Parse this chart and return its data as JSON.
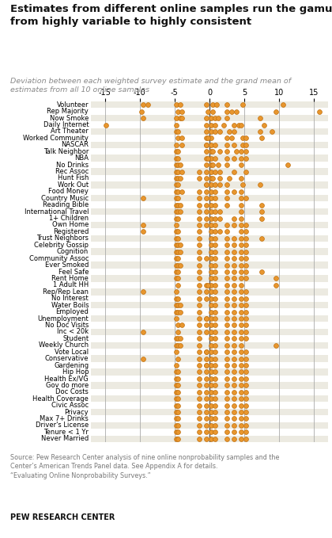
{
  "title": "Estimates from different online samples run the gamut\nfrom highly variable to highly consistent",
  "subtitle": "Deviation between each weighted survey estimate and the grand mean of\nestimates from all 10 online samples",
  "footer": "Source: Pew Research Center analysis of nine online nonprobability samples and the\nCenter’s American Trends Panel data. See Appendix A for details.\n“Evaluating Online Nonprobability Surveys.”",
  "footer2": "PEW RESEARCH CENTER",
  "xlim": [
    -17,
    17
  ],
  "xticks": [
    -15,
    -10,
    -5,
    0,
    5,
    10,
    15
  ],
  "categories": [
    "Volunteer",
    "Rep Majority",
    "Now Smoke",
    "Daily Internet",
    "Art Theater",
    "Worked Community",
    "NASCAR",
    "Talk Neighbor",
    "NBA",
    "No Drinks",
    "Rec Assoc",
    "Hunt Fish",
    "Work Out",
    "Food Money",
    "Country Music",
    "Reading Bible",
    "International Travel",
    "1+ Children",
    "Own Home",
    "Registered",
    "Trust Neighbors",
    "Celebrity Gossip",
    "Cognition",
    "Community Assoc",
    "Ever Smoked",
    "Feel Safe",
    "Rent Home",
    "1 Adult HH",
    "Rep/Rep Lean",
    "No Interest",
    "Water Boils",
    "Employed",
    "Unemployment",
    "No Doc Visits",
    "Inc < 20k",
    "Student",
    "Weekly Church",
    "Vote Local",
    "Conservative",
    "Gardening",
    "Hip Hop",
    "Health Ex/VG",
    "Gov do more",
    "Doc Costs",
    "Health Coverage",
    "Civic Assoc",
    "Privacy",
    "Max 7+ Drinks",
    "Driver's License",
    "Tenure < 1 Yr",
    "Never Married"
  ],
  "dot_positions": {
    "Volunteer": [
      -9.5,
      -8.8,
      -4.8,
      -4.2,
      -0.5,
      0.5,
      1.0,
      2.5,
      4.8,
      10.5
    ],
    "Rep Majority": [
      -9.8,
      -4.5,
      -4.0,
      -0.2,
      0.5,
      2.5,
      3.8,
      9.5,
      15.8,
      3.2
    ],
    "Now Smoke": [
      -9.5,
      -4.8,
      -4.2,
      -4.0,
      -0.5,
      0.2,
      0.8,
      1.2,
      7.2,
      2.5
    ],
    "Daily Internet": [
      -14.8,
      -4.8,
      -0.5,
      0.2,
      0.8,
      3.5,
      4.2,
      4.5,
      7.8,
      2.0
    ],
    "Art Theater": [
      -4.8,
      -4.5,
      -0.5,
      0.2,
      0.8,
      1.5,
      2.8,
      7.2,
      9.0,
      3.5
    ],
    "Worked Community": [
      -4.5,
      -4.0,
      -0.5,
      0.2,
      2.5,
      4.8,
      5.2,
      7.5,
      3.2,
      -0.2
    ],
    "NASCAR": [
      -4.8,
      -4.0,
      -0.5,
      0.2,
      0.8,
      2.5,
      3.5,
      4.8,
      5.2,
      -0.5
    ],
    "Talk Neighbor": [
      -4.8,
      -4.5,
      -0.5,
      0.2,
      0.5,
      1.5,
      2.5,
      3.8,
      4.5,
      5.2
    ],
    "NBA": [
      -4.8,
      -4.5,
      -0.5,
      0.2,
      0.8,
      2.5,
      3.5,
      4.5,
      5.2,
      -0.2
    ],
    "No Drinks": [
      -4.8,
      -4.5,
      -4.2,
      -0.5,
      0.2,
      0.5,
      1.2,
      2.5,
      4.5,
      11.2
    ],
    "Rec Assoc": [
      -4.8,
      -4.5,
      -4.0,
      -0.5,
      0.2,
      0.8,
      1.5,
      3.5,
      5.2,
      -1.5
    ],
    "Hunt Fish": [
      -4.8,
      -4.5,
      -4.2,
      -0.5,
      0.2,
      0.5,
      1.5,
      2.8,
      4.5,
      -1.5
    ],
    "Work Out": [
      -4.8,
      -4.5,
      -0.5,
      0.2,
      0.8,
      1.5,
      2.5,
      4.8,
      7.2,
      -0.5
    ],
    "Food Money": [
      -4.8,
      -4.5,
      -4.0,
      -0.5,
      0.2,
      0.8,
      2.5,
      3.5,
      4.5,
      -1.5
    ],
    "Country Music": [
      -9.5,
      -4.8,
      -4.5,
      -0.5,
      0.2,
      0.8,
      2.5,
      4.5,
      5.2,
      -1.5
    ],
    "Reading Bible": [
      -4.8,
      -4.5,
      -4.2,
      -0.5,
      0.2,
      0.8,
      2.5,
      4.5,
      7.5,
      -1.5
    ],
    "International Travel": [
      -4.8,
      -4.5,
      -4.2,
      -0.5,
      0.2,
      0.8,
      1.5,
      4.5,
      7.5,
      -1.5
    ],
    "1+ Children": [
      -4.8,
      -4.5,
      -0.5,
      0.2,
      0.8,
      1.5,
      4.5,
      7.5,
      -1.5,
      3.5
    ],
    "Own Home": [
      -9.5,
      -4.8,
      -0.5,
      0.2,
      0.8,
      2.5,
      3.5,
      4.5,
      -1.5,
      5.2
    ],
    "Registered": [
      -9.5,
      -4.8,
      -4.5,
      0.2,
      0.8,
      1.5,
      2.5,
      4.5,
      -1.5,
      5.2
    ],
    "Trust Neighbors": [
      -4.8,
      -4.5,
      0.2,
      0.8,
      2.5,
      4.5,
      5.2,
      -1.5,
      7.5,
      3.5
    ],
    "Celebrity Gossip": [
      -4.8,
      -4.5,
      -4.2,
      0.2,
      0.8,
      2.5,
      4.5,
      5.2,
      -1.5,
      3.5
    ],
    "Cognition": [
      -4.8,
      -4.5,
      -4.2,
      0.2,
      0.8,
      2.5,
      4.5,
      5.2,
      -1.5,
      3.5
    ],
    "Community Assoc": [
      -4.8,
      -4.5,
      -0.5,
      0.2,
      0.8,
      2.5,
      4.5,
      5.2,
      -1.5,
      3.5
    ],
    "Ever Smoked": [
      -4.8,
      -4.5,
      -4.2,
      0.2,
      0.8,
      2.5,
      4.5,
      5.2,
      -1.5,
      3.5
    ],
    "Feel Safe": [
      -4.8,
      -4.5,
      0.2,
      0.8,
      2.5,
      4.5,
      5.2,
      -1.5,
      7.5,
      3.5
    ],
    "Rent Home": [
      -4.8,
      -4.5,
      0.2,
      0.8,
      2.5,
      4.5,
      5.2,
      -1.5,
      9.5,
      3.5
    ],
    "1 Adult HH": [
      -4.5,
      -0.5,
      0.2,
      0.8,
      2.5,
      4.5,
      -1.5,
      9.5,
      3.5,
      -0.2
    ],
    "Rep/Rep Lean": [
      -9.5,
      -4.8,
      -0.5,
      0.2,
      0.8,
      2.5,
      4.5,
      -1.5,
      3.5,
      5.2
    ],
    "No Interest": [
      -4.8,
      -4.5,
      -0.5,
      0.2,
      0.8,
      2.5,
      4.5,
      -1.5,
      3.5,
      5.2
    ],
    "Water Boils": [
      -4.8,
      -4.5,
      -4.2,
      0.2,
      0.8,
      2.5,
      4.5,
      -1.5,
      3.5,
      5.2
    ],
    "Employed": [
      -4.8,
      -4.5,
      -4.2,
      0.2,
      0.8,
      2.5,
      4.5,
      -1.5,
      3.5,
      5.2
    ],
    "Unemployment": [
      -4.8,
      -0.5,
      0.2,
      0.8,
      2.5,
      4.5,
      -1.5,
      3.5,
      5.2,
      -0.5
    ],
    "No Doc Visits": [
      -4.5,
      -4.0,
      0.2,
      0.8,
      2.5,
      4.5,
      -1.5,
      3.5,
      5.2,
      -0.5
    ],
    "Inc < 20k": [
      -9.5,
      -4.5,
      0.2,
      0.8,
      2.5,
      4.5,
      -1.5,
      3.5,
      5.2,
      -0.5
    ],
    "Student": [
      -4.8,
      -4.5,
      -4.2,
      0.2,
      0.8,
      2.5,
      4.5,
      -1.5,
      3.5,
      5.2
    ],
    "Weekly Church": [
      -4.8,
      -4.5,
      -4.2,
      0.2,
      0.8,
      2.5,
      4.5,
      -1.5,
      3.5,
      9.5
    ],
    "Vote Local": [
      -4.8,
      -0.5,
      0.2,
      0.8,
      2.5,
      4.5,
      -1.5,
      3.5,
      5.2,
      -0.5
    ],
    "Conservative": [
      -9.5,
      -4.5,
      0.2,
      0.8,
      2.5,
      4.5,
      -1.5,
      3.5,
      5.2,
      -0.5
    ],
    "Gardening": [
      -4.8,
      -0.5,
      0.2,
      0.8,
      2.5,
      4.5,
      -1.5,
      3.5,
      5.2,
      -0.5
    ],
    "Hip Hop": [
      -4.8,
      -4.5,
      0.2,
      0.8,
      2.5,
      4.5,
      -1.5,
      3.5,
      5.2,
      -0.5
    ],
    "Health Ex/VG": [
      -4.8,
      -4.5,
      0.2,
      0.8,
      2.5,
      4.5,
      -1.5,
      3.5,
      5.2,
      -0.5
    ],
    "Gov do more": [
      -4.8,
      -4.5,
      0.2,
      0.8,
      2.5,
      4.5,
      -1.5,
      3.5,
      5.2,
      -0.5
    ],
    "Doc Costs": [
      -4.8,
      -4.5,
      0.2,
      0.8,
      2.5,
      4.5,
      -1.5,
      3.5,
      5.2,
      -0.5
    ],
    "Health Coverage": [
      -4.8,
      -4.5,
      0.2,
      0.8,
      2.5,
      4.5,
      -1.5,
      3.5,
      5.2,
      -0.5
    ],
    "Civic Assoc": [
      -4.8,
      -4.5,
      0.2,
      0.8,
      2.5,
      4.5,
      -1.5,
      3.5,
      5.2,
      -0.5
    ],
    "Privacy": [
      -4.8,
      -4.5,
      0.2,
      0.8,
      2.5,
      4.5,
      -1.5,
      3.5,
      5.2,
      -0.5
    ],
    "Max 7+ Drinks": [
      -4.8,
      -4.5,
      0.2,
      0.8,
      2.5,
      4.5,
      -1.5,
      3.5,
      5.2,
      -0.5
    ],
    "Driver's License": [
      -4.8,
      -4.5,
      0.2,
      0.8,
      2.5,
      4.5,
      -1.5,
      3.5,
      5.2,
      -0.5
    ],
    "Tenure < 1 Yr": [
      -4.8,
      -4.5,
      0.2,
      0.8,
      2.5,
      4.5,
      -1.5,
      3.5,
      5.2,
      -0.5
    ],
    "Never Married": [
      -4.8,
      -4.5,
      0.2,
      0.8,
      2.5,
      4.5,
      -1.5,
      3.5,
      5.2,
      -0.5
    ]
  },
  "dot_color": "#E8962E",
  "dot_edge_color": "#C07010",
  "vline_color": "#AAAAAA",
  "zero_line_color": "#555555",
  "bg_color": "#FFFFFF",
  "alt_row_color": "#ECEAE1",
  "title_color": "#111111",
  "subtitle_color": "#888888",
  "footer_color": "#777777"
}
